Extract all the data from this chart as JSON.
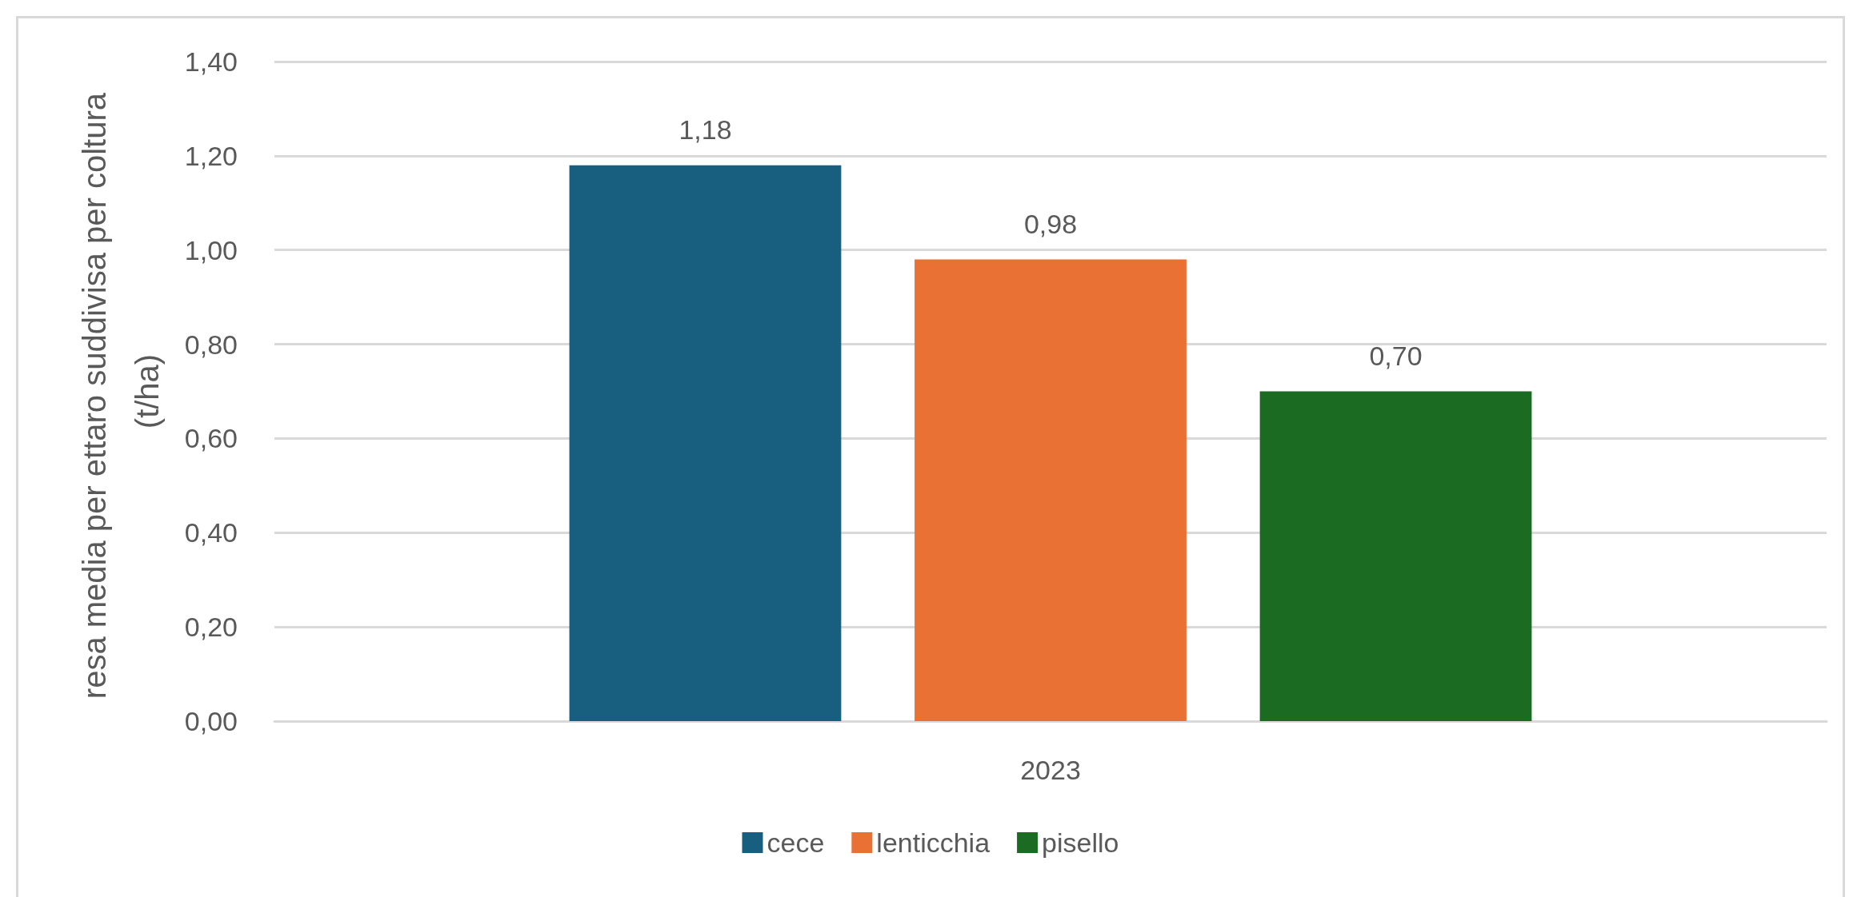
{
  "chart_data": {
    "type": "bar",
    "ylabel": "resa media per ettaro suddivisa per coltura (t/ha)",
    "categories": [
      "2023"
    ],
    "series": [
      {
        "name": "cece",
        "color": "#175e7f",
        "values": [
          1.18
        ],
        "value_labels": [
          "1,18"
        ]
      },
      {
        "name": "lenticchia",
        "color": "#e87133",
        "values": [
          0.98
        ],
        "value_labels": [
          "0,98"
        ]
      },
      {
        "name": "pisello",
        "color": "#1c6b23",
        "values": [
          0.7
        ],
        "value_labels": [
          "0,70"
        ]
      }
    ],
    "ylim": [
      0,
      1.4
    ],
    "yticks": [
      {
        "value": 0,
        "label": "0,00"
      },
      {
        "value": 0.2,
        "label": "0,20"
      },
      {
        "value": 0.4,
        "label": "0,40"
      },
      {
        "value": 0.6,
        "label": "0,60"
      },
      {
        "value": 0.8,
        "label": "0,80"
      },
      {
        "value": 1.0,
        "label": "1,00"
      },
      {
        "value": 1.2,
        "label": "1,20"
      },
      {
        "value": 1.4,
        "label": "1,40"
      }
    ],
    "grid": "y",
    "legend": "bottom"
  }
}
